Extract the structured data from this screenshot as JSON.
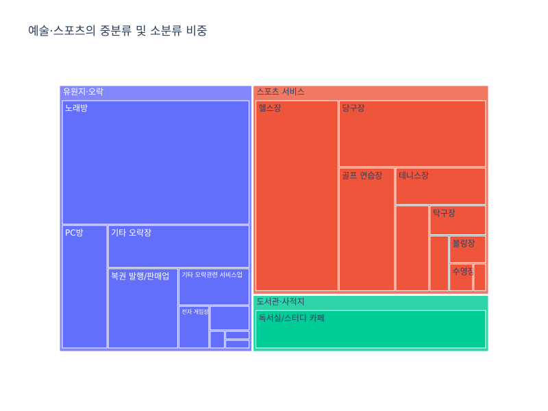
{
  "chart_data": {
    "type": "treemap",
    "title": "예술·스포츠의 중분류 및 소분류 비중",
    "groups": [
      {
        "name": "유원지·오락",
        "color": "#636efa",
        "header_color": "#8287fb",
        "label_color": "#ffffff",
        "value": 45.0,
        "children": [
          {
            "name": "노래방",
            "value": 21.0
          },
          {
            "name": "PC방",
            "value": 5.1
          },
          {
            "name": "기타 오락장",
            "value": 5.5
          },
          {
            "name": "복권 발행/판매업",
            "value": 5.1
          },
          {
            "name": "기타 오락관련 서비스업",
            "value": 2.4
          },
          {
            "name": "전자 게임장",
            "value": 1.2
          },
          {
            "name": "",
            "value": 0.9
          },
          {
            "name": "",
            "value": 0.25
          },
          {
            "name": "",
            "value": 0.2
          },
          {
            "name": "",
            "value": 0.2
          }
        ]
      },
      {
        "name": "스포츠 서비스",
        "color": "#ef553b",
        "header_color": "#f17862",
        "label_color": "#2a3f5f",
        "value": 43.2,
        "children": [
          {
            "name": "헬스장",
            "value": 13.0
          },
          {
            "name": "당구장",
            "value": 8.1
          },
          {
            "name": "골프 연습장",
            "value": 5.7
          },
          {
            "name": "테니스장",
            "value": 2.8
          },
          {
            "name": "",
            "value": 2.4
          },
          {
            "name": "탁구장",
            "value": 1.4
          },
          {
            "name": "",
            "value": 0.9
          },
          {
            "name": "볼링장",
            "value": 0.85
          },
          {
            "name": "수영장",
            "value": 0.55
          },
          {
            "name": "",
            "value": 0.3
          }
        ]
      },
      {
        "name": "도서관·사적지",
        "color": "#00cc96",
        "header_color": "#2fd5a8",
        "label_color": "#2a3f5f",
        "value": 11.8,
        "children": [
          {
            "name": "독서실/스터디 카페",
            "value": 11.5
          }
        ]
      }
    ]
  }
}
